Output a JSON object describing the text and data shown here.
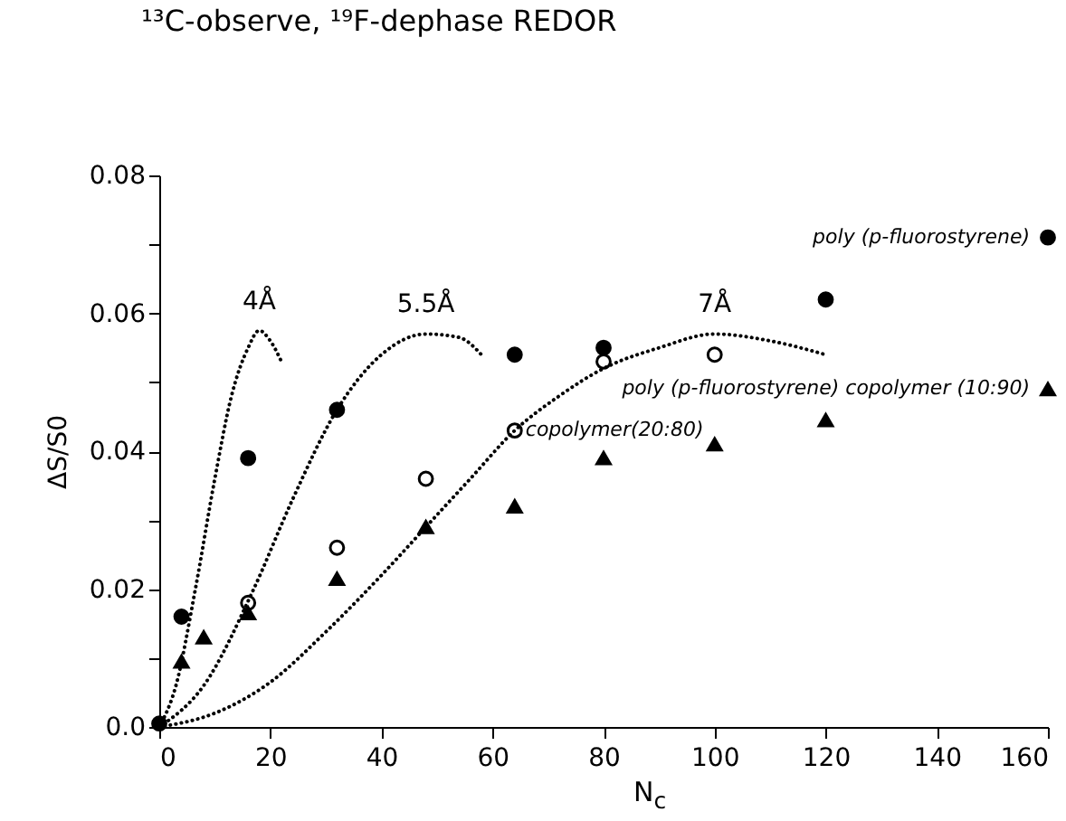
{
  "chart_data": {
    "type": "scatter",
    "title": "¹³C-observe, ¹⁹F-dephase REDOR",
    "xlabel": "N$_{c}$",
    "ylabel": "ΔS/S0",
    "xlim": [
      0,
      160
    ],
    "xticks": [
      0,
      20,
      40,
      60,
      80,
      100,
      120,
      140,
      160
    ],
    "ylim": [
      0,
      0.08
    ],
    "yticks": [
      {
        "value": 0,
        "label": "0.0"
      },
      {
        "value": 0.01,
        "label": null
      },
      0.02,
      {
        "value": 0.03,
        "label": null
      },
      0.04,
      {
        "value": 0.05,
        "label": null
      },
      0.06,
      {
        "value": 0.07,
        "label": null
      },
      0.08
    ],
    "grid": false,
    "series": [
      {
        "name": "poly (p-fluorostyrene)",
        "marker": "circle",
        "color": "#000000",
        "x": [
          0,
          4,
          16,
          32,
          64,
          80,
          120,
          160
        ],
        "values": [
          0.0005,
          0.016,
          0.039,
          0.046,
          0.054,
          0.055,
          0.062,
          0.071
        ]
      },
      {
        "name": "copolymer(20:80)",
        "marker": "circle",
        "color": "#ffffff",
        "x": [
          16,
          32,
          48,
          64,
          80,
          100
        ],
        "values": [
          0.018,
          0.026,
          0.036,
          0.043,
          0.053,
          0.054
        ]
      },
      {
        "name": "poly (p-fluorostyrene) copolymer (10:90)",
        "marker": "triangle",
        "color": "#000000",
        "x": [
          4,
          8,
          16,
          32,
          48,
          64,
          80,
          100,
          120,
          160
        ],
        "values": [
          0.0095,
          0.013,
          0.0165,
          0.0215,
          0.029,
          0.032,
          0.039,
          0.041,
          0.0445,
          0.049
        ]
      },
      {
        "name": "4Å",
        "type": "line",
        "line_style": "dotted",
        "color": "#000000",
        "x": [
          0,
          3,
          6.5,
          10,
          13,
          16,
          18,
          20,
          22
        ],
        "values": [
          0,
          0.006,
          0.02,
          0.036,
          0.048,
          0.055,
          0.0575,
          0.056,
          0.053
        ]
      },
      {
        "name": "5.5Å",
        "type": "line",
        "line_style": "dotted",
        "color": "#000000",
        "x": [
          0,
          8,
          17,
          24,
          32,
          40,
          48,
          54,
          58
        ],
        "values": [
          0,
          0.006,
          0.02,
          0.033,
          0.046,
          0.054,
          0.057,
          0.0565,
          0.054
        ]
      },
      {
        "name": "7Å",
        "type": "line",
        "line_style": "dotted",
        "color": "#000000",
        "x": [
          0,
          10,
          20,
          30,
          40,
          48,
          56,
          64,
          72,
          80,
          90,
          100,
          110,
          120
        ],
        "values": [
          0,
          0.002,
          0.0065,
          0.0138,
          0.022,
          0.029,
          0.036,
          0.043,
          0.048,
          0.052,
          0.055,
          0.057,
          0.056,
          0.054
        ]
      }
    ]
  }
}
